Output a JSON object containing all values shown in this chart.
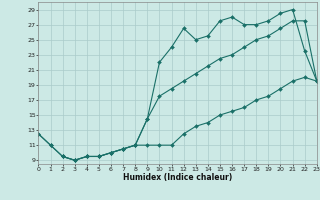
{
  "title": "",
  "xlabel": "Humidex (Indice chaleur)",
  "ylabel": "",
  "bg_color": "#cce9e5",
  "grid_color": "#aaccca",
  "line_color": "#1a7068",
  "xlim": [
    0,
    23
  ],
  "ylim": [
    8.5,
    30
  ],
  "xticks": [
    0,
    1,
    2,
    3,
    4,
    5,
    6,
    7,
    8,
    9,
    10,
    11,
    12,
    13,
    14,
    15,
    16,
    17,
    18,
    19,
    20,
    21,
    22,
    23
  ],
  "yticks": [
    9,
    11,
    13,
    15,
    17,
    19,
    21,
    23,
    25,
    27,
    29
  ],
  "line1_x": [
    0,
    1,
    2,
    3,
    4,
    5,
    6,
    7,
    8,
    9,
    10,
    11,
    12,
    13,
    14,
    15,
    16,
    17,
    18,
    19,
    20,
    21,
    22,
    23
  ],
  "line1_y": [
    12.5,
    11,
    9.5,
    9,
    9.5,
    9.5,
    10,
    10.5,
    11,
    14.5,
    22,
    24,
    26.5,
    25,
    25.5,
    27.5,
    28,
    27,
    27,
    27.5,
    28.5,
    29,
    23.5,
    19.5
  ],
  "line2_x": [
    0,
    1,
    2,
    3,
    4,
    5,
    6,
    7,
    8,
    9,
    10,
    11,
    12,
    13,
    14,
    15,
    16,
    17,
    18,
    19,
    20,
    21,
    22,
    23
  ],
  "line2_y": [
    12.5,
    11,
    9.5,
    9,
    9.5,
    9.5,
    10,
    10.5,
    11,
    14.5,
    17.5,
    18.5,
    19.5,
    20.5,
    21.5,
    22.5,
    23,
    24,
    25,
    25.5,
    26.5,
    27.5,
    27.5,
    19.5
  ],
  "line3_x": [
    2,
    3,
    4,
    5,
    6,
    7,
    8,
    9,
    10,
    11,
    12,
    13,
    14,
    15,
    16,
    17,
    18,
    19,
    20,
    21,
    22,
    23
  ],
  "line3_y": [
    9.5,
    9,
    9.5,
    9.5,
    10,
    10.5,
    11,
    11,
    11,
    11,
    12.5,
    13.5,
    14,
    15,
    15.5,
    16,
    17,
    17.5,
    18.5,
    19.5,
    20,
    19.5
  ]
}
